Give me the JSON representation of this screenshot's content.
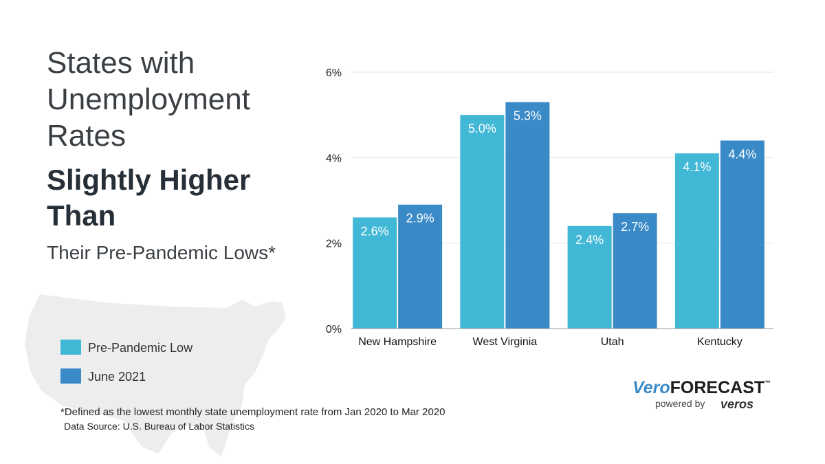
{
  "chart_data": {
    "type": "bar",
    "title_lines": [
      "States with",
      "Unemployment",
      "Rates"
    ],
    "headline_lines": [
      "Slightly Higher",
      "Than"
    ],
    "subtitle": "Their Pre-Pandemic Lows*",
    "categories": [
      "New Hampshire",
      "West Virginia",
      "Utah",
      "Kentucky"
    ],
    "series": [
      {
        "name": "Pre-Pandemic Low",
        "color": "#41b8d5",
        "values": [
          2.6,
          5.0,
          2.4,
          4.1
        ],
        "value_labels": [
          "2.6%",
          "5.0%",
          "2.4%",
          "4.1%"
        ]
      },
      {
        "name": "June 2021",
        "color": "#3a8ac8",
        "values": [
          2.9,
          5.3,
          2.7,
          4.4
        ],
        "value_labels": [
          "2.9%",
          "5.3%",
          "2.7%",
          "4.4%"
        ]
      }
    ],
    "ylim": [
      0,
      6
    ],
    "yticks": [
      {
        "value": 0,
        "label": "0%"
      },
      {
        "value": 2,
        "label": "2%"
      },
      {
        "value": 4,
        "label": "4%"
      },
      {
        "value": 6,
        "label": "6%"
      }
    ],
    "grid": true,
    "footnote": "*Defined as the lowest monthly state unemployment rate from Jan 2020 to Mar 2020",
    "source": "Data Source:  U.S. Bureau of Labor Statistics"
  },
  "logo": {
    "brand_a": "Vero",
    "brand_b": "FORECAST",
    "trademark": "™",
    "powered_by": "powered by",
    "company": "veros"
  }
}
